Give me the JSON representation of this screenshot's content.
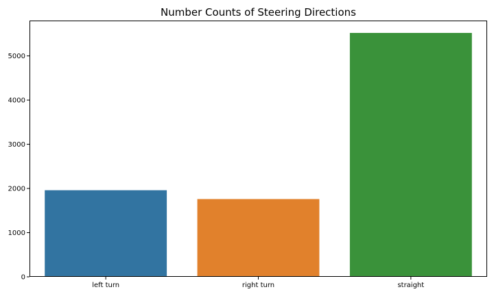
{
  "chart_data": {
    "type": "bar",
    "title": "Number Counts of Steering Directions",
    "xlabel": "",
    "ylabel": "",
    "categories": [
      "left turn",
      "right turn",
      "straight"
    ],
    "values": [
      1960,
      1760,
      5520
    ],
    "colors": [
      "#3274a1",
      "#e1812c",
      "#3a923a"
    ],
    "ylim": [
      0,
      5800
    ],
    "yticks": [
      0,
      1000,
      2000,
      3000,
      4000,
      5000
    ],
    "grid": false,
    "legend": "none"
  }
}
